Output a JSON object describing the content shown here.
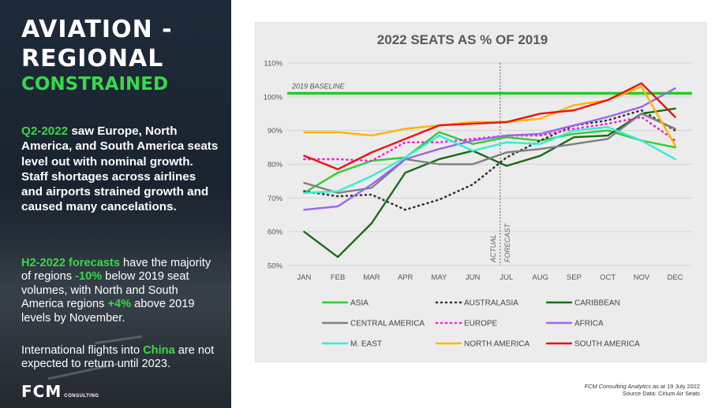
{
  "left": {
    "title_line1": "AVIATION -",
    "title_line2": "REGIONAL",
    "title_sub": "CONSTRAINED",
    "para1_highlight": "Q2-2022",
    "para1_text": " saw Europe, North America, and South America seats level out with nominal growth. Staff shortages across airlines and airports strained growth and caused many cancelations.",
    "para2_highlight1": "H2-2022 forecasts",
    "para2_text1": " have the majority of regions ",
    "para2_highlight2": "-10%",
    "para2_text2": " below 2019 seat volumes, with North and South America regions ",
    "para2_highlight3": "+4%",
    "para2_text3": " above 2019 levels by November.",
    "para3_text1": "International flights into ",
    "para3_highlight": "China",
    "para3_text2": " are not expected to return until 2023.",
    "logo_main": "FCM",
    "logo_sub": "CONSULTING"
  },
  "footer": {
    "line1_italic": "FCM Consulting Analytics",
    "line1_text": " as at 19 July 2022",
    "line2": "Source Data: Cirium Air Seats"
  },
  "chart_data": {
    "type": "line",
    "title": "2022 SEATS AS % OF 2019",
    "xlabel": "",
    "ylabel": "",
    "categories": [
      "JAN",
      "FEB",
      "MAR",
      "APR",
      "MAY",
      "JUN",
      "JUL",
      "AUG",
      "SEP",
      "OCT",
      "NOV",
      "DEC"
    ],
    "ylim": [
      50,
      110
    ],
    "yticks": [
      50,
      60,
      70,
      80,
      90,
      100,
      110
    ],
    "ytick_labels": [
      "50%",
      "60%",
      "70%",
      "80%",
      "90%",
      "100%",
      "110%"
    ],
    "baseline": {
      "value": 101,
      "label": "2019 BASELINE",
      "color": "#22cc22"
    },
    "divider": {
      "after_category": "JUL",
      "left_label": "ACTUAL",
      "right_label": "FORECAST"
    },
    "legend_position": "bottom",
    "series": [
      {
        "name": "ASIA",
        "color": "#33cc33",
        "style": "solid",
        "values": [
          71.5,
          77.5,
          81,
          82,
          89.5,
          86,
          88,
          87,
          89,
          90,
          87,
          85
        ]
      },
      {
        "name": "AUSTRALASIA",
        "color": "#333333",
        "style": "dotted",
        "values": [
          72,
          70.5,
          71,
          66.5,
          69.5,
          74,
          82,
          87,
          91.5,
          93,
          96,
          90
        ]
      },
      {
        "name": "CARIBBEAN",
        "color": "#1a6b1a",
        "style": "solid",
        "values": [
          60,
          52.5,
          62.5,
          77.5,
          81.5,
          84,
          79.5,
          82.5,
          88,
          88.5,
          95,
          96.5
        ]
      },
      {
        "name": "CENTRAL AMERICA",
        "color": "#7f7f7f",
        "style": "solid",
        "values": [
          74.5,
          71.5,
          73,
          81.5,
          80,
          80,
          83.5,
          84.5,
          86,
          87.5,
          95,
          90.5
        ]
      },
      {
        "name": "EUROPE",
        "color": "#ee22dd",
        "style": "dotted",
        "values": [
          81.5,
          81.5,
          81,
          86.5,
          86.5,
          87.5,
          88.5,
          88.5,
          90.5,
          92,
          94,
          87
        ]
      },
      {
        "name": "AFRICA",
        "color": "#9966ee",
        "style": "solid",
        "values": [
          66.5,
          67.5,
          74,
          81.5,
          84.5,
          87,
          88.5,
          89,
          91.5,
          94,
          97,
          102.5
        ]
      },
      {
        "name": "M. EAST",
        "color": "#33eed0",
        "style": "solid",
        "values": [
          71.5,
          72,
          76.5,
          82,
          88.5,
          84,
          86.5,
          86,
          90,
          91,
          87,
          81.5
        ]
      },
      {
        "name": "NORTH AMERICA",
        "color": "#ffb400",
        "style": "solid",
        "values": [
          89.5,
          89.5,
          88.5,
          90.5,
          91.5,
          92.5,
          92.5,
          93.5,
          97.5,
          99,
          103,
          85.5
        ]
      },
      {
        "name": "SOUTH AMERICA",
        "color": "#ee1111",
        "style": "solid",
        "values": [
          82.5,
          78.5,
          83.5,
          87.5,
          91.5,
          92,
          92.5,
          95,
          96,
          99,
          104,
          94
        ]
      }
    ]
  }
}
